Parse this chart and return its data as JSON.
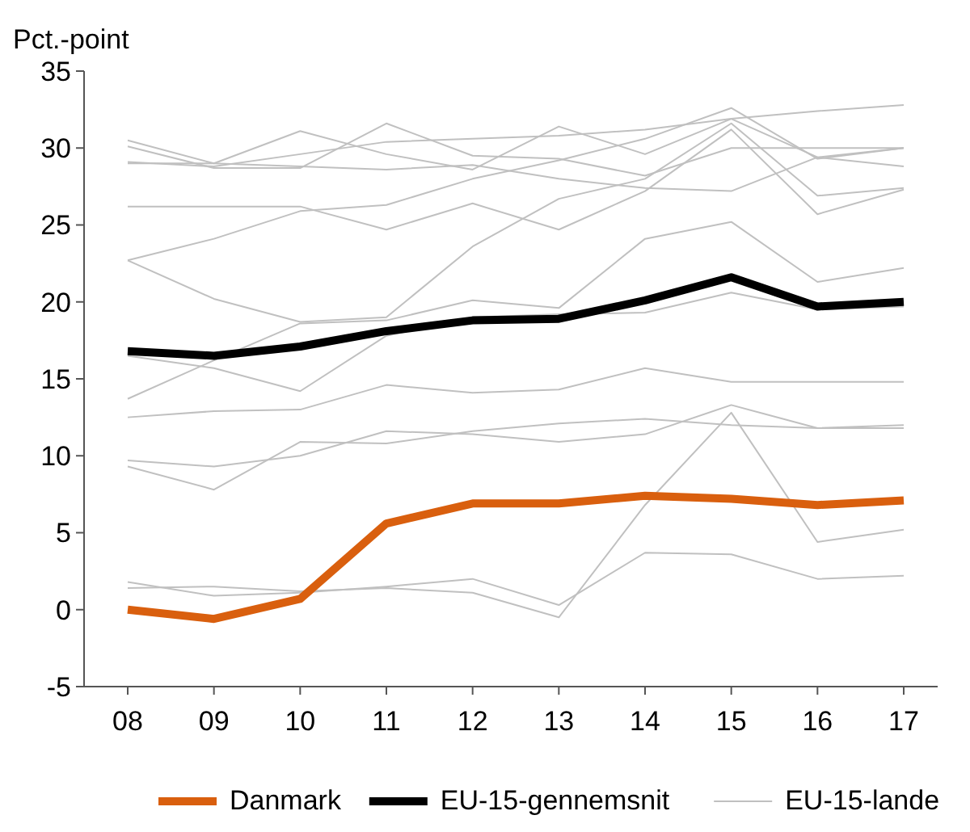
{
  "chart_data": {
    "type": "line",
    "ylabel": "Pct.-point",
    "categories": [
      "08",
      "09",
      "10",
      "11",
      "12",
      "13",
      "14",
      "15",
      "16",
      "17"
    ],
    "ylim": [
      -5,
      35
    ],
    "yticks": [
      -5,
      0,
      5,
      10,
      15,
      20,
      25,
      30,
      35
    ],
    "grid": false,
    "legend": "bottom",
    "marker": "none",
    "line_style": "solid",
    "series": [
      {
        "name": "Danmark",
        "color": "#d95f0e",
        "values": [
          0.0,
          -0.6,
          0.7,
          5.6,
          6.9,
          6.9,
          7.4,
          7.2,
          6.8,
          7.1
        ]
      },
      {
        "name": "EU-15-gennemsnit",
        "color": "#000000",
        "values": [
          16.8,
          16.5,
          17.1,
          18.1,
          18.8,
          18.9,
          20.1,
          21.6,
          19.7,
          20.0
        ]
      },
      {
        "name": "EU-15-lande",
        "color": "#c0c0c0",
        "values": [
          29.1,
          28.8,
          29.6,
          30.4,
          30.6,
          30.8,
          31.2,
          31.9,
          32.4,
          32.8
        ]
      },
      {
        "color": "#c0c0c0",
        "values": [
          30.5,
          29.0,
          31.1,
          29.6,
          28.6,
          31.4,
          29.6,
          31.9,
          29.4,
          28.8
        ]
      },
      {
        "color": "#c0c0c0",
        "values": [
          30.1,
          28.7,
          28.7,
          31.6,
          29.5,
          29.3,
          28.2,
          30.0,
          30.0,
          30.0
        ]
      },
      {
        "color": "#c0c0c0",
        "values": [
          29.0,
          29.0,
          28.8,
          28.6,
          28.9,
          28.0,
          27.4,
          27.2,
          29.4,
          30.0
        ]
      },
      {
        "color": "#c0c0c0",
        "values": [
          26.2,
          26.2,
          26.2,
          24.7,
          26.4,
          24.7,
          27.2,
          31.2,
          25.7,
          27.3
        ]
      },
      {
        "color": "#c0c0c0",
        "values": [
          22.7,
          24.1,
          25.9,
          26.3,
          28.0,
          29.2,
          30.6,
          32.6,
          29.3,
          30.0
        ]
      },
      {
        "color": "#c0c0c0",
        "values": [
          22.7,
          20.2,
          18.7,
          19.0,
          23.6,
          26.7,
          28.0,
          31.6,
          26.9,
          27.4
        ]
      },
      {
        "color": "#c0c0c0",
        "values": [
          13.7,
          16.2,
          18.6,
          18.8,
          20.1,
          19.6,
          24.1,
          25.2,
          21.3,
          22.2
        ]
      },
      {
        "color": "#c0c0c0",
        "values": [
          16.5,
          15.7,
          14.2,
          17.8,
          19.0,
          19.2,
          19.3,
          20.6,
          19.5,
          19.7
        ]
      },
      {
        "color": "#c0c0c0",
        "values": [
          12.5,
          12.9,
          13.0,
          14.6,
          14.1,
          14.3,
          15.7,
          14.8,
          14.8,
          14.8
        ]
      },
      {
        "color": "#c0c0c0",
        "values": [
          9.7,
          9.3,
          10.0,
          11.6,
          11.4,
          10.9,
          11.4,
          13.3,
          11.8,
          12.0
        ]
      },
      {
        "color": "#c0c0c0",
        "values": [
          9.3,
          7.8,
          10.9,
          10.8,
          11.6,
          12.1,
          12.4,
          12.0,
          11.8,
          11.8
        ]
      },
      {
        "color": "#c0c0c0",
        "values": [
          1.8,
          0.9,
          1.1,
          1.5,
          2.0,
          0.3,
          3.7,
          3.6,
          2.0,
          2.2
        ]
      },
      {
        "color": "#c0c0c0",
        "values": [
          1.4,
          1.5,
          1.2,
          1.4,
          1.1,
          -0.5,
          6.8,
          12.8,
          4.4,
          5.2
        ]
      }
    ]
  }
}
